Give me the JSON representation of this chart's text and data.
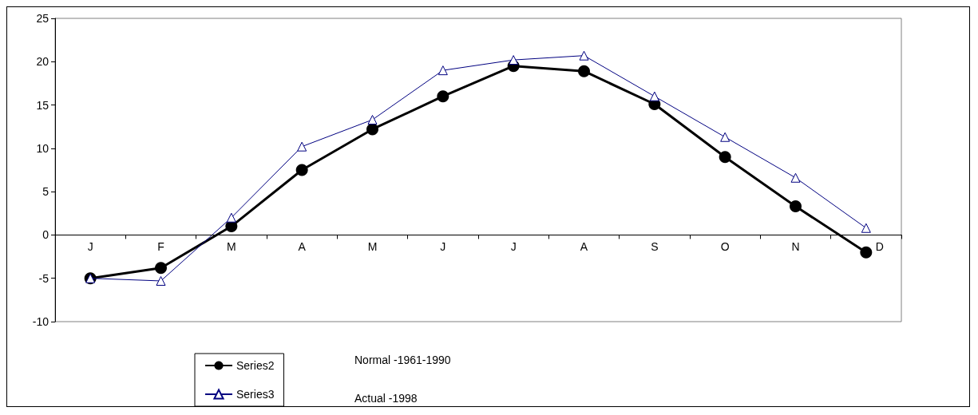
{
  "chart_data": {
    "type": "line",
    "categories": [
      "J",
      "F",
      "M",
      "A",
      "M",
      "J",
      "J",
      "A",
      "S",
      "O",
      "N",
      "D"
    ],
    "series": [
      {
        "name": "Series2",
        "color": "#000000",
        "marker": "circle",
        "values": [
          -5,
          -3.8,
          1,
          7.5,
          12.2,
          16,
          19.5,
          18.9,
          15.1,
          9,
          3.3,
          -2
        ]
      },
      {
        "name": "Series3",
        "color": "#000080",
        "marker": "triangle",
        "values": [
          -5,
          -5.3,
          2,
          10.2,
          13.3,
          19,
          20.2,
          20.7,
          16,
          11.3,
          6.6,
          0.8
        ]
      }
    ],
    "ylim": [
      -10,
      25
    ],
    "yticks": [
      -10,
      -5,
      0,
      5,
      10,
      15,
      20,
      25
    ],
    "grid": false,
    "legend": "bottom",
    "line_style": "solid",
    "annotations": [
      "Normal -1961-1990",
      "Actual -1998"
    ]
  }
}
